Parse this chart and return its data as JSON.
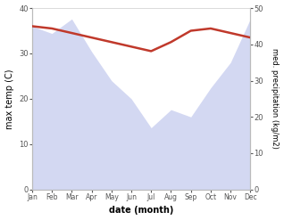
{
  "months": [
    "Jan",
    "Feb",
    "Mar",
    "Apr",
    "May",
    "Jun",
    "Jul",
    "Aug",
    "Sep",
    "Oct",
    "Nov",
    "Dec"
  ],
  "month_indices": [
    0,
    1,
    2,
    3,
    4,
    5,
    6,
    7,
    8,
    9,
    10,
    11
  ],
  "precipitation": [
    45,
    43,
    47,
    38,
    30,
    25,
    17,
    22,
    20,
    28,
    35,
    47
  ],
  "max_temp": [
    36.0,
    35.5,
    34.5,
    33.5,
    32.5,
    31.5,
    30.5,
    32.5,
    35.0,
    35.5,
    34.5,
    33.5
  ],
  "precip_color": "#b0b8e8",
  "temp_color": "#c0392b",
  "left_ylim": [
    0,
    40
  ],
  "right_ylim": [
    0,
    50
  ],
  "left_yticks": [
    0,
    10,
    20,
    30,
    40
  ],
  "right_yticks": [
    0,
    10,
    20,
    30,
    40,
    50
  ],
  "xlabel": "date (month)",
  "ylabel_left": "max temp (C)",
  "ylabel_right": "med. precipitation (kg/m2)",
  "bg_color": "#ffffff"
}
